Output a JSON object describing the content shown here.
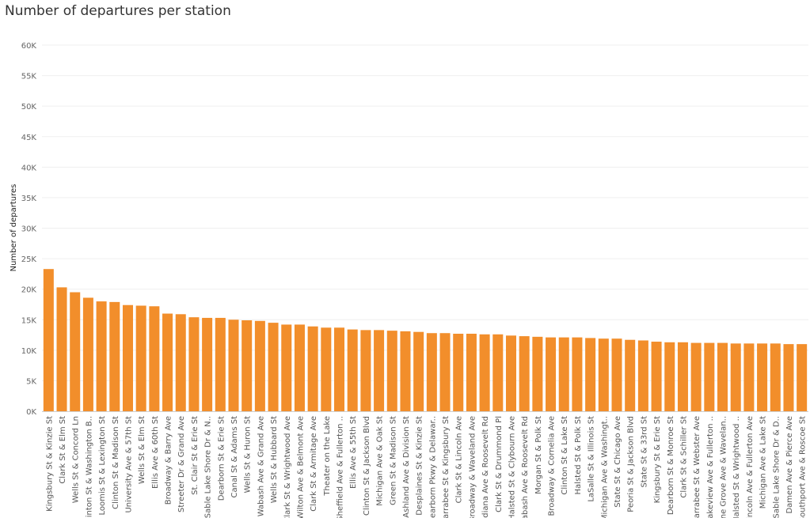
{
  "chart_data": {
    "type": "bar",
    "title": "Number of departures per station",
    "ylabel": "Number of departures",
    "xlabel": "",
    "ylim": [
      0,
      60000
    ],
    "yticks": [
      0,
      5000,
      10000,
      15000,
      20000,
      25000,
      30000,
      35000,
      40000,
      45000,
      50000,
      55000,
      60000
    ],
    "ytick_labels": [
      "0K",
      "5K",
      "10K",
      "15K",
      "20K",
      "25K",
      "30K",
      "35K",
      "40K",
      "45K",
      "50K",
      "55K",
      "60K"
    ],
    "grid": true,
    "bar_color": "#f28e2b",
    "categories": [
      "Kingsbury St & Kinzie St",
      "Clark St & Elm St",
      "Wells St & Concord Ln",
      "Clinton St & Washington B..",
      "Loomis St & Lexington St",
      "Clinton St & Madison St",
      "University Ave & 57th St",
      "Wells St & Elm St",
      "Ellis Ave & 60th St",
      "Broadway & Barry Ave",
      "Streeter Dr & Grand Ave",
      "St. Clair St & Erie St",
      "DuSable Lake Shore Dr & N..",
      "Dearborn St & Erie St",
      "Canal St & Adams St",
      "Wells St & Huron St",
      "Wabash Ave & Grand Ave",
      "Wells St & Hubbard St",
      "Clark St & Wrightwood Ave",
      "Wilton Ave & Belmont Ave",
      "Clark St & Armitage Ave",
      "Theater on the Lake",
      "Sheffield Ave & Fullerton ..",
      "Ellis Ave & 55th St",
      "Clinton St & Jackson Blvd",
      "Michigan Ave & Oak St",
      "Green St & Madison St",
      "Ashland Ave & Division St",
      "Desplaines St & Kinzie St",
      "Dearborn Pkwy & Delawar..",
      "Larrabee St & Kingsbury St",
      "Clark St & Lincoln Ave",
      "Broadway & Waveland Ave",
      "Indiana Ave & Roosevelt Rd",
      "Clark St & Drummond Pl",
      "Halsted St & Clybourn Ave",
      "Wabash Ave & Roosevelt Rd",
      "Morgan St & Polk St",
      "Broadway & Cornelia Ave",
      "Clinton St & Lake St",
      "Halsted St & Polk St",
      "LaSalle St & Illinois St",
      "Michigan Ave & Washingt..",
      "State St & Chicago Ave",
      "Peoria St & Jackson Blvd",
      "State St & 33rd St",
      "Kingsbury St & Erie St",
      "Dearborn St & Monroe St",
      "Clark St & Schiller St",
      "Larrabee St & Webster Ave",
      "Lakeview Ave & Fullerton ..",
      "Pine Grove Ave & Wavelan..",
      "Halsted St & Wrightwood ..",
      "Lincoln Ave & Fullerton Ave",
      "Michigan Ave & Lake St",
      "DuSable Lake Shore Dr & D..",
      "Damen Ave & Pierce Ave",
      "Southport Ave & Roscoe St"
    ],
    "values": [
      23300,
      20300,
      19500,
      18600,
      18000,
      17900,
      17400,
      17300,
      17200,
      16000,
      15900,
      15400,
      15300,
      15300,
      15000,
      14900,
      14800,
      14500,
      14200,
      14200,
      13900,
      13700,
      13700,
      13400,
      13300,
      13300,
      13200,
      13100,
      13000,
      12800,
      12800,
      12700,
      12700,
      12600,
      12600,
      12400,
      12300,
      12200,
      12100,
      12100,
      12100,
      12000,
      11900,
      11900,
      11700,
      11600,
      11400,
      11300,
      11300,
      11200,
      11200,
      11200,
      11100,
      11100,
      11100,
      11100,
      11000,
      11000
    ]
  }
}
